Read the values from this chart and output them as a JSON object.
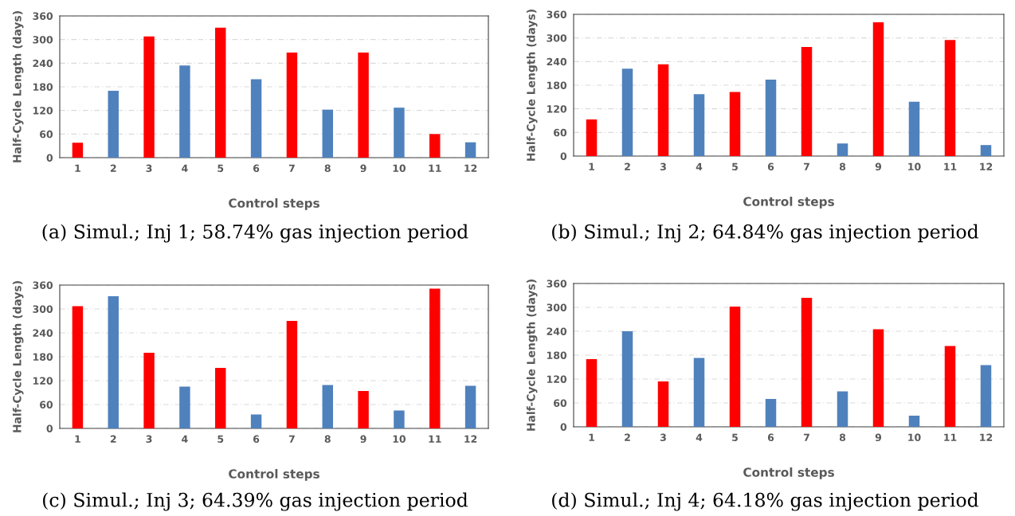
{
  "chart_data": [
    {
      "type": "bar",
      "categories": [
        "1",
        "2",
        "3",
        "4",
        "5",
        "6",
        "7",
        "8",
        "9",
        "10",
        "11",
        "12"
      ],
      "values": [
        38,
        170,
        308,
        234,
        330,
        199,
        267,
        122,
        267,
        127,
        60,
        39
      ],
      "colors": [
        "#ff0000",
        "#4f81bd",
        "#ff0000",
        "#4f81bd",
        "#ff0000",
        "#4f81bd",
        "#ff0000",
        "#4f81bd",
        "#ff0000",
        "#4f81bd",
        "#ff0000",
        "#4f81bd"
      ],
      "xlabel": "Control steps",
      "ylabel": "Half-Cycle Length (days)",
      "ylim": [
        0,
        360
      ],
      "yticks": [
        0,
        60,
        120,
        180,
        240,
        300,
        360
      ],
      "grid": "y",
      "annotations": [
        "(a) Simul.; Inj 1; 58.74% gas injection period"
      ]
    },
    {
      "type": "bar",
      "categories": [
        "1",
        "2",
        "3",
        "4",
        "5",
        "6",
        "7",
        "8",
        "9",
        "10",
        "11",
        "12"
      ],
      "values": [
        93,
        222,
        233,
        157,
        163,
        194,
        277,
        32,
        340,
        138,
        295,
        28
      ],
      "colors": [
        "#ff0000",
        "#4f81bd",
        "#ff0000",
        "#4f81bd",
        "#ff0000",
        "#4f81bd",
        "#ff0000",
        "#4f81bd",
        "#ff0000",
        "#4f81bd",
        "#ff0000",
        "#4f81bd"
      ],
      "xlabel": "Control steps",
      "ylabel": "Half-Cycle Length (days)",
      "ylim": [
        0,
        360
      ],
      "yticks": [
        0,
        60,
        120,
        180,
        240,
        300,
        360
      ],
      "grid": "y",
      "annotations": [
        "(b) Simul.; Inj 2; 64.84% gas injection period"
      ]
    },
    {
      "type": "bar",
      "categories": [
        "1",
        "2",
        "3",
        "4",
        "5",
        "6",
        "7",
        "8",
        "9",
        "10",
        "11",
        "12"
      ],
      "values": [
        307,
        332,
        190,
        105,
        152,
        35,
        270,
        109,
        94,
        45,
        351,
        107
      ],
      "colors": [
        "#ff0000",
        "#4f81bd",
        "#ff0000",
        "#4f81bd",
        "#ff0000",
        "#4f81bd",
        "#ff0000",
        "#4f81bd",
        "#ff0000",
        "#4f81bd",
        "#ff0000",
        "#4f81bd"
      ],
      "xlabel": "Control steps",
      "ylabel": "Half-Cycle Length (days)",
      "ylim": [
        0,
        360
      ],
      "yticks": [
        0,
        60,
        120,
        180,
        240,
        300,
        360
      ],
      "grid": "y",
      "annotations": [
        "(c) Simul.; Inj 3; 64.39% gas injection period"
      ]
    },
    {
      "type": "bar",
      "categories": [
        "1",
        "2",
        "3",
        "4",
        "5",
        "6",
        "7",
        "8",
        "9",
        "10",
        "11",
        "12"
      ],
      "values": [
        170,
        240,
        114,
        173,
        302,
        70,
        324,
        89,
        245,
        28,
        203,
        155
      ],
      "colors": [
        "#ff0000",
        "#4f81bd",
        "#ff0000",
        "#4f81bd",
        "#ff0000",
        "#4f81bd",
        "#ff0000",
        "#4f81bd",
        "#ff0000",
        "#4f81bd",
        "#ff0000",
        "#4f81bd"
      ],
      "xlabel": "Control steps",
      "ylabel": "Half-Cycle Length (days)",
      "ylim": [
        0,
        360
      ],
      "yticks": [
        0,
        60,
        120,
        180,
        240,
        300,
        360
      ],
      "grid": "y",
      "annotations": [
        "(d) Simul.; Inj 4; 64.18% gas injection period"
      ]
    }
  ]
}
